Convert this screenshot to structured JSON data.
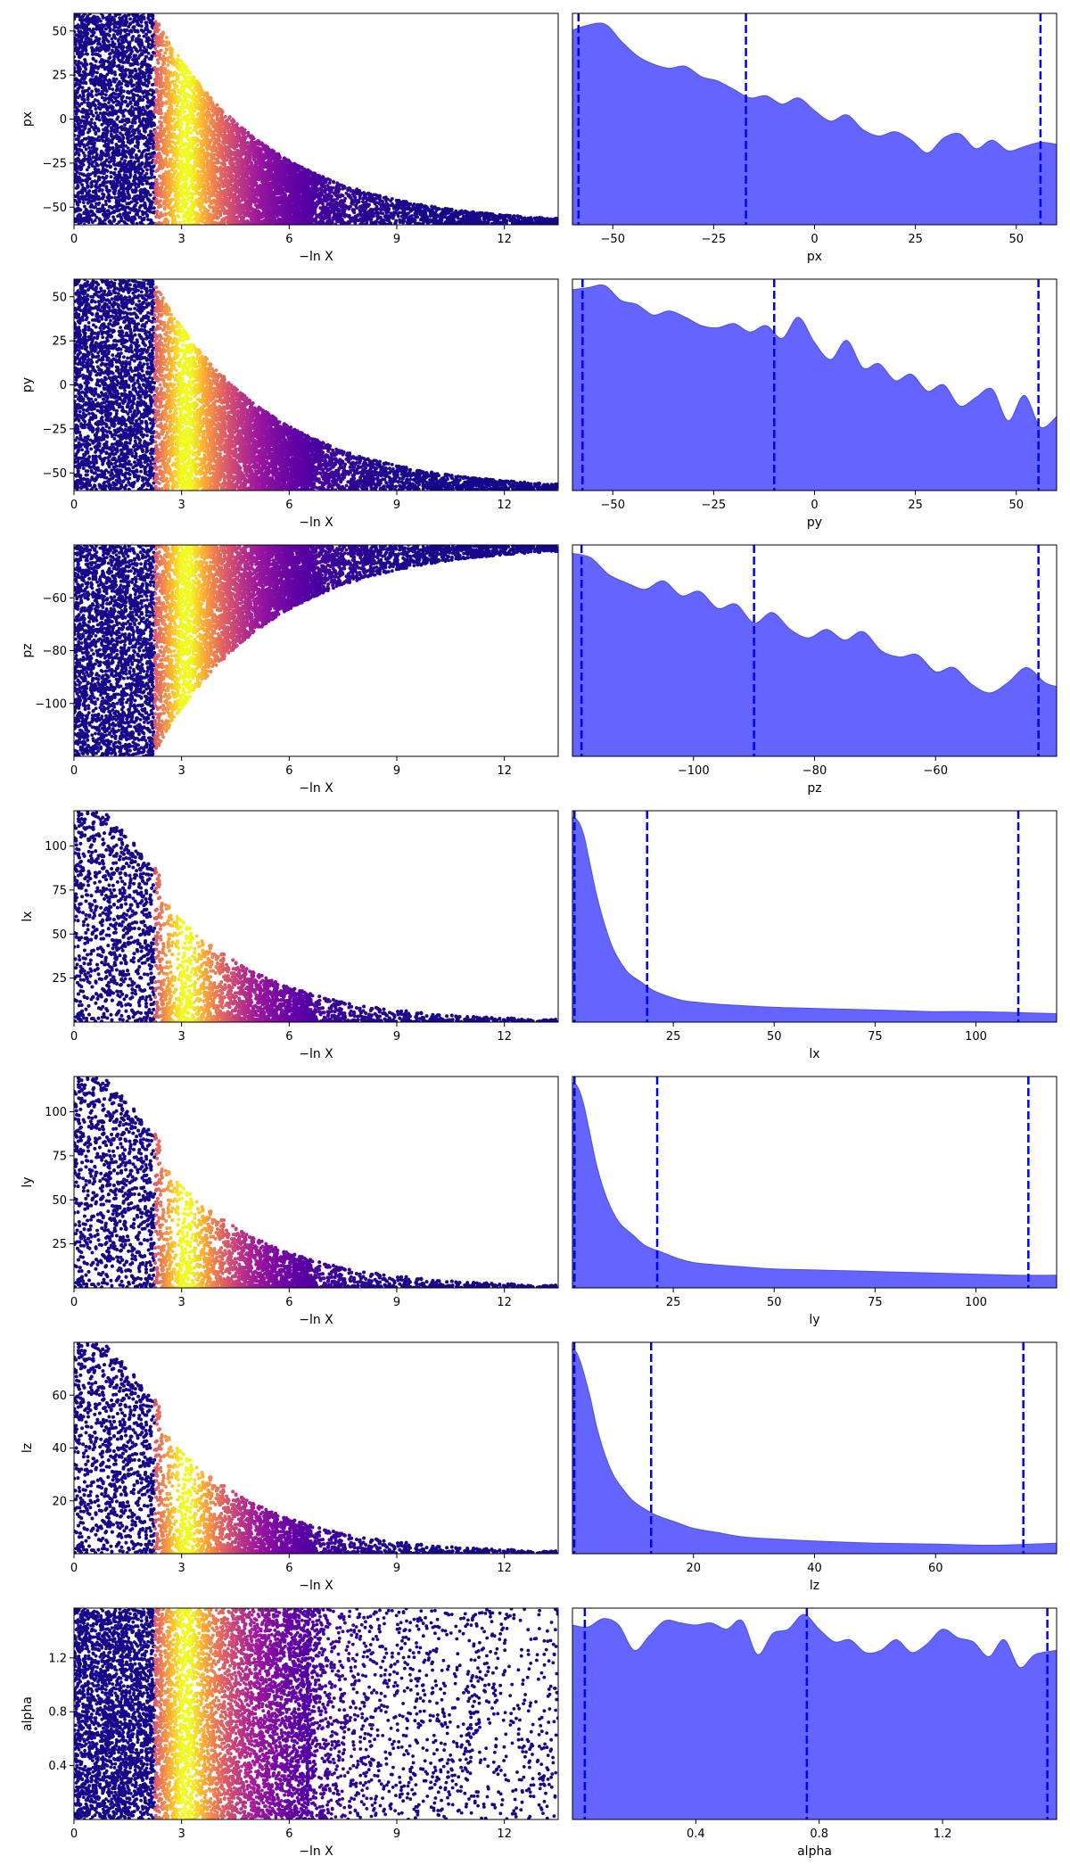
{
  "colors": {
    "kde_fill": "#6464ff",
    "kde_edge": "#4d4df0",
    "quantile_line": "#0000ff",
    "scatter_colormap": "plasma",
    "scatter_colormap_stops": [
      "#0d0887",
      "#5c01a6",
      "#9c179e",
      "#cc4778",
      "#ed7953",
      "#fdb42f",
      "#f0f921"
    ]
  },
  "chart_data": [
    {
      "type": "scatter",
      "panel": "trace",
      "param": "px",
      "xlabel": "−ln X",
      "ylabel": "px",
      "xlim": [
        0,
        13.5
      ],
      "ylim": [
        -60,
        60
      ],
      "xticks": [
        0,
        3,
        6,
        9,
        12
      ],
      "yticks": [
        -50,
        -25,
        0,
        25,
        50
      ],
      "sampling": {
        "prior": [
          -60,
          60
        ],
        "peak": -60,
        "shape": "boundary"
      },
      "points": 9000,
      "color_by": "importance weight (peak near −ln X = 3.3)"
    },
    {
      "type": "area",
      "panel": "posterior",
      "param": "px",
      "xlabel": "px",
      "xlim": [
        -60,
        60
      ],
      "xticks": [
        -50,
        -25,
        0,
        25,
        50
      ],
      "quantiles": [
        -58.5,
        -17,
        56
      ],
      "density_x": [
        -60,
        -57,
        -52,
        -48,
        -44,
        -40,
        -36,
        -32,
        -28,
        -24,
        -20,
        -16,
        -12,
        -8,
        -4,
        0,
        4,
        8,
        12,
        16,
        20,
        24,
        28,
        32,
        36,
        40,
        44,
        48,
        52,
        56,
        60
      ],
      "density_y": [
        0.92,
        0.94,
        0.95,
        0.87,
        0.8,
        0.76,
        0.74,
        0.75,
        0.7,
        0.68,
        0.64,
        0.6,
        0.61,
        0.57,
        0.6,
        0.54,
        0.49,
        0.52,
        0.45,
        0.42,
        0.44,
        0.4,
        0.34,
        0.41,
        0.43,
        0.36,
        0.4,
        0.35,
        0.37,
        0.39,
        0.38
      ]
    },
    {
      "type": "scatter",
      "panel": "trace",
      "param": "py",
      "xlabel": "−ln X",
      "ylabel": "py",
      "xlim": [
        0,
        13.5
      ],
      "ylim": [
        -60,
        60
      ],
      "xticks": [
        0,
        3,
        6,
        9,
        12
      ],
      "yticks": [
        -50,
        -25,
        0,
        25,
        50
      ],
      "sampling": {
        "prior": [
          -60,
          60
        ],
        "peak": -60,
        "shape": "boundary"
      },
      "points": 9000,
      "color_by": "importance weight"
    },
    {
      "type": "area",
      "panel": "posterior",
      "param": "py",
      "xlabel": "py",
      "xlim": [
        -60,
        60
      ],
      "xticks": [
        -50,
        -25,
        0,
        25,
        50
      ],
      "quantiles": [
        -57.5,
        -10,
        55.5
      ],
      "density_x": [
        -60,
        -56,
        -52,
        -48,
        -44,
        -40,
        -36,
        -32,
        -28,
        -24,
        -20,
        -16,
        -12,
        -8,
        -4,
        0,
        4,
        8,
        12,
        16,
        20,
        24,
        28,
        32,
        36,
        40,
        44,
        48,
        52,
        56,
        60
      ],
      "density_y": [
        0.95,
        0.96,
        0.97,
        0.9,
        0.88,
        0.83,
        0.85,
        0.82,
        0.78,
        0.77,
        0.79,
        0.75,
        0.78,
        0.72,
        0.82,
        0.7,
        0.62,
        0.71,
        0.58,
        0.6,
        0.52,
        0.55,
        0.47,
        0.5,
        0.4,
        0.44,
        0.48,
        0.33,
        0.45,
        0.3,
        0.35
      ]
    },
    {
      "type": "scatter",
      "panel": "trace",
      "param": "pz",
      "xlabel": "−ln X",
      "ylabel": "pz",
      "xlim": [
        0,
        13.5
      ],
      "ylim": [
        -120,
        -40
      ],
      "xticks": [
        0,
        3,
        6,
        9,
        12
      ],
      "yticks": [
        -100,
        -80,
        -60
      ],
      "sampling": {
        "prior": [
          -120,
          -40
        ],
        "peak": -40,
        "shape": "boundary"
      },
      "points": 9000,
      "color_by": "importance weight"
    },
    {
      "type": "area",
      "panel": "posterior",
      "param": "pz",
      "xlabel": "pz",
      "xlim": [
        -120,
        -40
      ],
      "xticks": [
        -100,
        -80,
        -60
      ],
      "quantiles": [
        -118.5,
        -90,
        -43
      ],
      "density_x": [
        -120,
        -117,
        -114,
        -111,
        -108,
        -105,
        -102,
        -99,
        -96,
        -93,
        -90,
        -87,
        -84,
        -81,
        -78,
        -75,
        -72,
        -69,
        -66,
        -63,
        -60,
        -57,
        -54,
        -51,
        -48,
        -45,
        -42,
        -40
      ],
      "density_y": [
        0.96,
        0.94,
        0.86,
        0.82,
        0.79,
        0.83,
        0.76,
        0.78,
        0.7,
        0.72,
        0.63,
        0.68,
        0.6,
        0.56,
        0.6,
        0.55,
        0.59,
        0.5,
        0.47,
        0.48,
        0.4,
        0.42,
        0.34,
        0.3,
        0.35,
        0.42,
        0.35,
        0.33
      ]
    },
    {
      "type": "scatter",
      "panel": "trace",
      "param": "lx",
      "xlabel": "−ln X",
      "ylabel": "lx",
      "xlim": [
        0,
        13.5
      ],
      "ylim": [
        0,
        120
      ],
      "xticks": [
        0,
        3,
        6,
        9,
        12
      ],
      "yticks": [
        25,
        50,
        75,
        100
      ],
      "sampling": {
        "prior": [
          0,
          120
        ],
        "peak": 0,
        "shape": "spike"
      },
      "points": 9000,
      "color_by": "importance weight"
    },
    {
      "type": "area",
      "panel": "posterior",
      "param": "lx",
      "xlabel": "lx",
      "xlim": [
        0,
        120
      ],
      "xticks": [
        25,
        50,
        75,
        100
      ],
      "quantiles": [
        0.5,
        18.5,
        110.5
      ],
      "density_x": [
        0,
        1,
        2,
        3,
        4,
        6,
        8,
        10,
        12,
        14,
        17,
        20,
        24,
        28,
        33,
        40,
        50,
        60,
        70,
        80,
        90,
        100,
        110,
        120
      ],
      "density_y": [
        0.97,
        0.96,
        0.93,
        0.87,
        0.78,
        0.6,
        0.46,
        0.35,
        0.28,
        0.23,
        0.19,
        0.15,
        0.12,
        0.1,
        0.09,
        0.08,
        0.07,
        0.065,
        0.06,
        0.055,
        0.05,
        0.05,
        0.045,
        0.04
      ]
    },
    {
      "type": "scatter",
      "panel": "trace",
      "param": "ly",
      "xlabel": "−ln X",
      "ylabel": "ly",
      "xlim": [
        0,
        13.5
      ],
      "ylim": [
        0,
        120
      ],
      "xticks": [
        0,
        3,
        6,
        9,
        12
      ],
      "yticks": [
        25,
        50,
        75,
        100
      ],
      "sampling": {
        "prior": [
          0,
          120
        ],
        "peak": 0,
        "shape": "spike"
      },
      "points": 9000,
      "color_by": "importance weight"
    },
    {
      "type": "area",
      "panel": "posterior",
      "param": "ly",
      "xlabel": "ly",
      "xlim": [
        0,
        120
      ],
      "xticks": [
        25,
        50,
        75,
        100
      ],
      "quantiles": [
        0.5,
        21,
        113
      ],
      "density_x": [
        0,
        1,
        2,
        3,
        4,
        6,
        8,
        10,
        12,
        15,
        18,
        22,
        26,
        30,
        35,
        42,
        50,
        60,
        70,
        80,
        90,
        100,
        110,
        120
      ],
      "density_y": [
        0.97,
        0.96,
        0.92,
        0.85,
        0.76,
        0.58,
        0.45,
        0.36,
        0.3,
        0.25,
        0.2,
        0.17,
        0.14,
        0.12,
        0.11,
        0.1,
        0.09,
        0.085,
        0.08,
        0.075,
        0.07,
        0.065,
        0.06,
        0.06
      ]
    },
    {
      "type": "scatter",
      "panel": "trace",
      "param": "lz",
      "xlabel": "−ln X",
      "ylabel": "lz",
      "xlim": [
        0,
        13.5
      ],
      "ylim": [
        0,
        80
      ],
      "xticks": [
        0,
        3,
        6,
        9,
        12
      ],
      "yticks": [
        20,
        40,
        60
      ],
      "sampling": {
        "prior": [
          0,
          80
        ],
        "peak": 0,
        "shape": "spike"
      },
      "points": 9000,
      "color_by": "importance weight"
    },
    {
      "type": "area",
      "panel": "posterior",
      "param": "lz",
      "xlabel": "lz",
      "xlim": [
        0,
        80
      ],
      "xticks": [
        20,
        40,
        60
      ],
      "quantiles": [
        0.3,
        13,
        74.5
      ],
      "density_x": [
        0,
        0.7,
        1.4,
        2.1,
        3,
        4,
        5,
        6,
        7,
        8.5,
        10,
        12,
        14,
        17,
        20,
        24,
        28,
        33,
        40,
        50,
        60,
        70,
        80
      ],
      "density_y": [
        0.97,
        0.95,
        0.9,
        0.83,
        0.73,
        0.6,
        0.5,
        0.42,
        0.36,
        0.3,
        0.25,
        0.21,
        0.18,
        0.15,
        0.12,
        0.1,
        0.08,
        0.07,
        0.06,
        0.05,
        0.045,
        0.04,
        0.05
      ]
    },
    {
      "type": "scatter",
      "panel": "trace",
      "param": "alpha",
      "xlabel": "−ln X",
      "ylabel": "alpha",
      "xlim": [
        0,
        13.5
      ],
      "ylim": [
        0,
        1.57
      ],
      "xticks": [
        0,
        3,
        6,
        9,
        12
      ],
      "yticks": [
        0.4,
        0.8,
        1.2
      ],
      "sampling": {
        "prior": [
          0,
          1.57
        ],
        "peak": 1.57,
        "shape": "flat"
      },
      "points": 9000,
      "color_by": "importance weight"
    },
    {
      "type": "area",
      "panel": "posterior",
      "param": "alpha",
      "xlabel": "alpha",
      "xlim": [
        0,
        1.57
      ],
      "xticks": [
        0.4,
        0.8,
        1.2
      ],
      "quantiles": [
        0.04,
        0.76,
        1.54
      ],
      "density_x": [
        0,
        0.05,
        0.1,
        0.15,
        0.2,
        0.25,
        0.3,
        0.35,
        0.4,
        0.45,
        0.5,
        0.55,
        0.6,
        0.65,
        0.7,
        0.75,
        0.8,
        0.85,
        0.9,
        0.95,
        1.0,
        1.05,
        1.1,
        1.15,
        1.2,
        1.25,
        1.3,
        1.35,
        1.4,
        1.45,
        1.5,
        1.57
      ],
      "density_y": [
        0.92,
        0.91,
        0.95,
        0.92,
        0.8,
        0.87,
        0.94,
        0.93,
        0.92,
        0.93,
        0.9,
        0.94,
        0.78,
        0.88,
        0.9,
        0.97,
        0.9,
        0.84,
        0.85,
        0.79,
        0.8,
        0.85,
        0.79,
        0.83,
        0.9,
        0.86,
        0.84,
        0.77,
        0.85,
        0.72,
        0.78,
        0.8
      ]
    }
  ]
}
